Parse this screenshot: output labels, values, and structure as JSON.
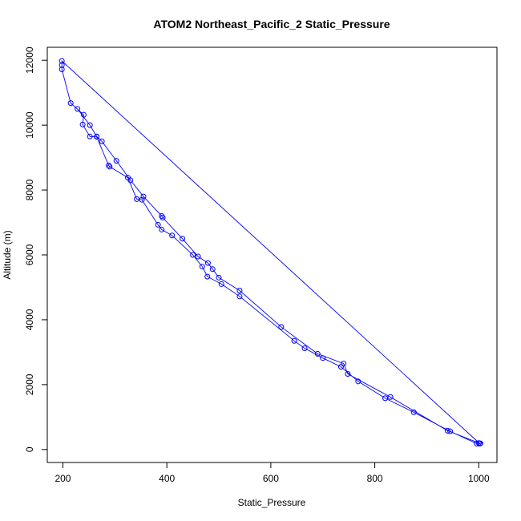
{
  "chart_data": {
    "type": "line",
    "title": "ATOM2 Northeast_Pacific_2 Static_Pressure",
    "xlabel": "Static_Pressure",
    "ylabel": "Altitude (m)",
    "xlim": [
      170,
      1035
    ],
    "ylim": [
      -400,
      12400
    ],
    "xticks": [
      200,
      400,
      600,
      800,
      1000
    ],
    "yticks": [
      0,
      2000,
      4000,
      6000,
      8000,
      10000,
      12000
    ],
    "series_color": "#0000ff",
    "series": [
      {
        "values": [
          [
            996,
            180
          ],
          [
            945,
            560
          ],
          [
            875,
            1150
          ],
          [
            820,
            1580
          ],
          [
            768,
            2100
          ],
          [
            735,
            2550
          ],
          [
            700,
            2820
          ],
          [
            665,
            3120
          ],
          [
            645,
            3350
          ],
          [
            540,
            4720
          ],
          [
            505,
            5100
          ],
          [
            478,
            5330
          ],
          [
            468,
            5640
          ],
          [
            450,
            6000
          ],
          [
            410,
            6600
          ],
          [
            390,
            6780
          ],
          [
            383,
            6930
          ],
          [
            352,
            7700
          ],
          [
            342,
            7720
          ],
          [
            325,
            8380
          ],
          [
            290,
            8720
          ],
          [
            288,
            8760
          ],
          [
            265,
            9640
          ],
          [
            252,
            9650
          ],
          [
            238,
            10020
          ],
          [
            240,
            10320
          ],
          [
            215,
            10680
          ],
          [
            198,
            11720
          ],
          [
            198,
            11850
          ],
          [
            198,
            11980
          ],
          [
            1002,
            180
          ],
          [
            1003,
            190
          ],
          [
            1000,
            200
          ],
          [
            940,
            580
          ],
          [
            830,
            1620
          ],
          [
            748,
            2330
          ],
          [
            740,
            2650
          ],
          [
            690,
            2950
          ],
          [
            620,
            3780
          ],
          [
            540,
            4900
          ],
          [
            500,
            5300
          ],
          [
            488,
            5560
          ],
          [
            479,
            5750
          ],
          [
            460,
            5950
          ],
          [
            430,
            6500
          ],
          [
            392,
            7150
          ],
          [
            390,
            7200
          ],
          [
            355,
            7800
          ],
          [
            330,
            8300
          ],
          [
            303,
            8900
          ],
          [
            275,
            9500
          ],
          [
            265,
            9650
          ],
          [
            252,
            10000
          ],
          [
            228,
            10500
          ]
        ]
      }
    ]
  }
}
